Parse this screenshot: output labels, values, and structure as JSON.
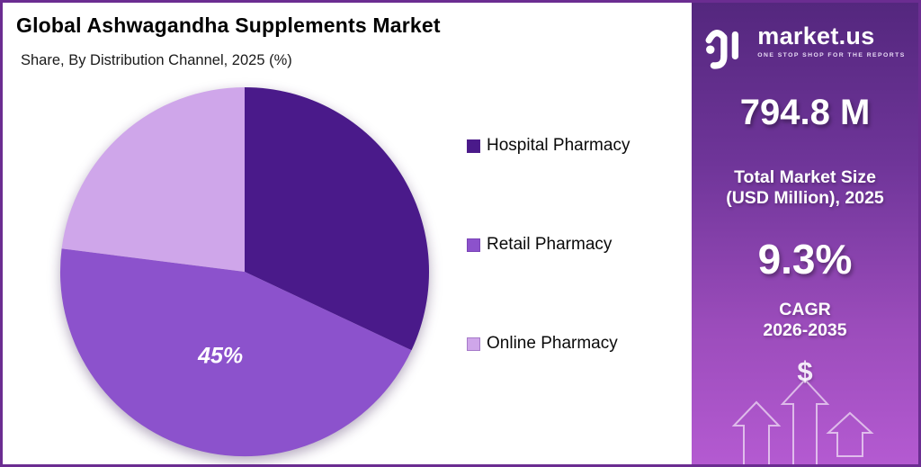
{
  "header": {
    "title": "Global Ashwagandha Supplements Market",
    "subtitle": "Share, By Distribution Channel, 2025 (%)"
  },
  "chart_data": {
    "type": "pie",
    "title": "Global Ashwagandha Supplements Market",
    "subtitle": "Share, By Distribution Channel, 2025 (%)",
    "unit": "%",
    "start_angle_deg": 0,
    "direction": "clockwise",
    "legend_position": "right",
    "slices": [
      {
        "label": "Hospital Pharmacy",
        "value": 32,
        "color": "#4A1A8A",
        "data_label": ""
      },
      {
        "label": "Retail Pharmacy",
        "value": 45,
        "color": "#8C52CC",
        "data_label": "45%"
      },
      {
        "label": "Online Pharmacy",
        "value": 23,
        "color": "#CFA6EA",
        "data_label": ""
      }
    ],
    "shown_data_labels": [
      "45%"
    ]
  },
  "sidebar": {
    "brand": "market.us",
    "tagline": "ONE STOP SHOP FOR THE REPORTS",
    "market_size_value": "794.8 M",
    "market_size_label_line1": "Total Market Size",
    "market_size_label_line2": "(USD Million), 2025",
    "cagr_value": "9.3%",
    "cagr_label_line1": "CAGR",
    "cagr_label_line2": "2026-2035",
    "dollar_symbol": "$"
  },
  "colors": {
    "frame_border": "#6b2d91",
    "sidebar_gradient_top": "#54277e",
    "sidebar_gradient_bottom": "#b45ad1",
    "pie_label_text": "#ffffff",
    "title_text": "#000000"
  }
}
